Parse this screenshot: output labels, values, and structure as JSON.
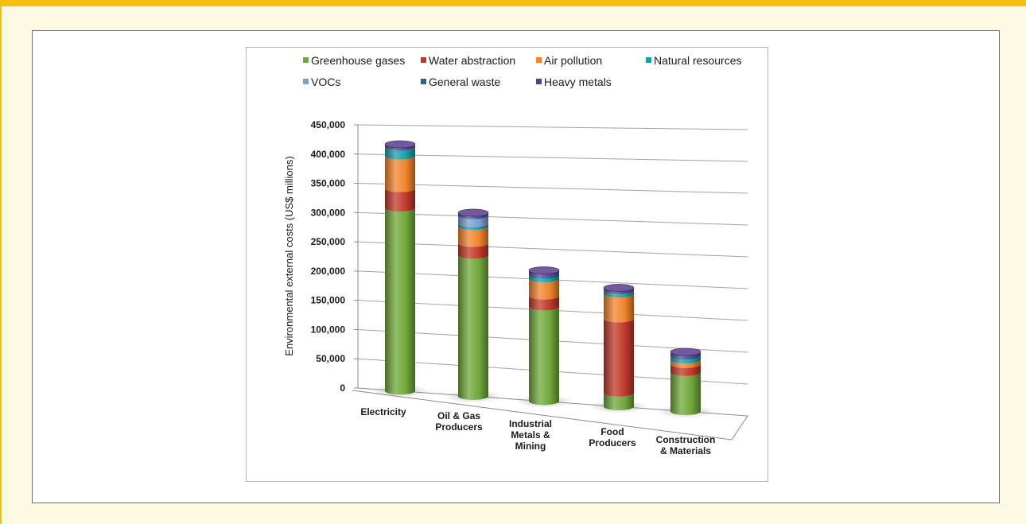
{
  "chart_data": {
    "type": "bar",
    "stacked": true,
    "style": "3d-cylinder",
    "ylabel": "Environmental external costs  (US$ millions)",
    "ylim": [
      0,
      450000
    ],
    "yticks": [
      0,
      50000,
      100000,
      150000,
      200000,
      250000,
      300000,
      350000,
      400000,
      450000
    ],
    "ytick_labels": [
      "0",
      "50,000",
      "100,000",
      "150,000",
      "200,000",
      "250,000",
      "300,000",
      "350,000",
      "400,000",
      "450,000"
    ],
    "grid": true,
    "legend_position": "top",
    "categories": [
      [
        "Electricity"
      ],
      [
        "Oil & Gas",
        "Producers"
      ],
      [
        "Industrial",
        "Metals &",
        "Mining"
      ],
      [
        "Food",
        "Producers"
      ],
      [
        "Construction",
        "& Materials"
      ]
    ],
    "series": [
      {
        "name": "Greenhouse gases",
        "color": "#6fa83a",
        "values": [
          310000,
          235000,
          155000,
          22000,
          62000
        ]
      },
      {
        "name": "Water abstraction",
        "color": "#c0392b",
        "values": [
          33000,
          20000,
          18000,
          120000,
          13000
        ]
      },
      {
        "name": "Air pollution",
        "color": "#f0842c",
        "values": [
          55000,
          28000,
          28000,
          40000,
          7000
        ]
      },
      {
        "name": "Natural resources",
        "color": "#1a9fa8",
        "values": [
          15000,
          5000,
          6000,
          5000,
          6000
        ]
      },
      {
        "name": "VOCs",
        "color": "#7b9fd4",
        "values": [
          0,
          13000,
          0,
          0,
          0
        ]
      },
      {
        "name": "General waste",
        "color": "#24619e",
        "values": [
          2000,
          2000,
          4000,
          2000,
          3000
        ]
      },
      {
        "name": "Heavy metals",
        "color": "#5a3d8a",
        "values": [
          3000,
          3000,
          4000,
          3000,
          4000
        ]
      }
    ]
  }
}
